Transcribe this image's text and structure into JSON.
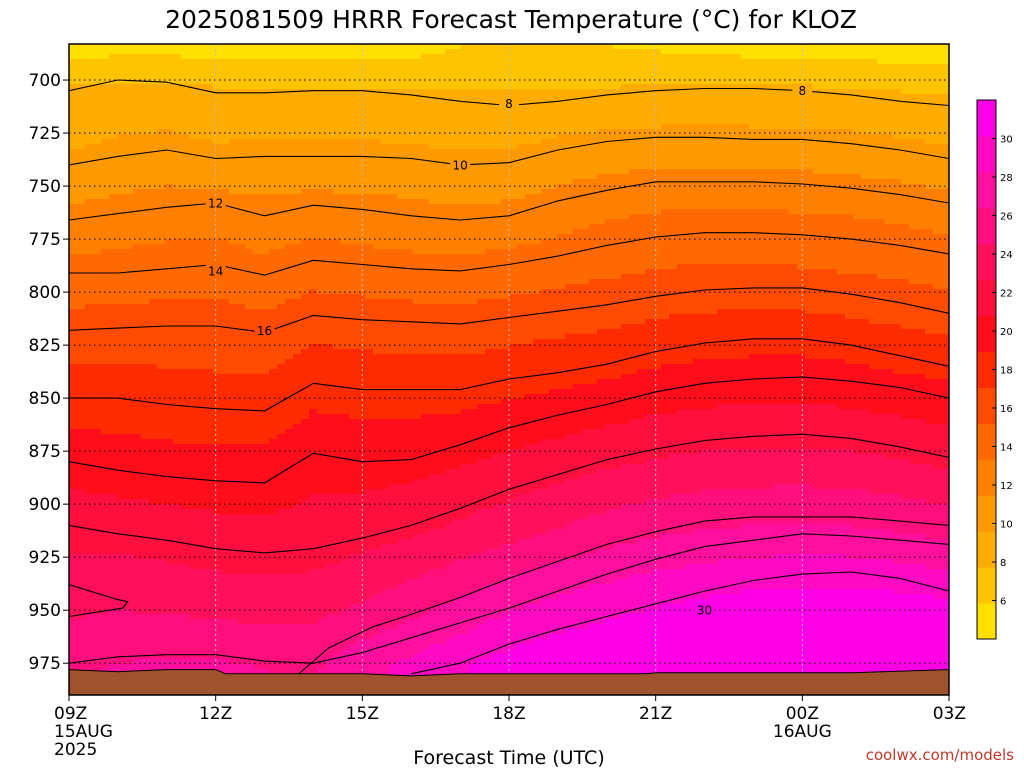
{
  "chart_data": {
    "type": "heatmap",
    "title": "2025081509 HRRR Forecast Temperature (°C) for KLOZ",
    "xlabel": "Forecast Time (UTC)",
    "ylabel": "",
    "y_axis": {
      "ticks": [
        700,
        725,
        750,
        775,
        800,
        825,
        850,
        875,
        900,
        925,
        950,
        975
      ],
      "range": [
        683,
        990
      ],
      "inverted": true
    },
    "x_axis": {
      "ticks": [
        {
          "label": "09Z",
          "sub1": "15AUG",
          "sub2": "2025",
          "hour": 0
        },
        {
          "label": "12Z",
          "sub1": "",
          "sub2": "",
          "hour": 3
        },
        {
          "label": "15Z",
          "sub1": "",
          "sub2": "",
          "hour": 6
        },
        {
          "label": "18Z",
          "sub1": "",
          "sub2": "",
          "hour": 9
        },
        {
          "label": "21Z",
          "sub1": "",
          "sub2": "",
          "hour": 12
        },
        {
          "label": "00Z",
          "sub1": "16AUG",
          "sub2": "",
          "hour": 15
        },
        {
          "label": "03Z",
          "sub1": "",
          "sub2": "",
          "hour": 18
        }
      ],
      "range": [
        0,
        18
      ]
    },
    "grid": true,
    "colorbar": {
      "ticks": [
        6,
        8,
        10,
        12,
        14,
        16,
        18,
        20,
        22,
        24,
        26,
        28,
        30
      ],
      "range": [
        4,
        32
      ],
      "colors": [
        "#ffe000",
        "#ffc400",
        "#ffac00",
        "#ff9900",
        "#ff8000",
        "#ff6a00",
        "#ff4b00",
        "#ff2b00",
        "#ff0d1a",
        "#ff0f3d",
        "#ff0f5c",
        "#ff0f7d",
        "#ff0f9e",
        "#ff0ac3",
        "#ff00e6"
      ],
      "placement": "right"
    },
    "surface_color": "#a0522d",
    "contours": [
      {
        "value": 8,
        "label_at": [
          [
            9.0,
            711
          ],
          [
            15.0,
            705
          ]
        ],
        "points": [
          [
            0,
            705
          ],
          [
            1,
            700
          ],
          [
            2,
            701
          ],
          [
            3,
            706
          ],
          [
            4,
            706
          ],
          [
            5,
            705
          ],
          [
            6,
            705
          ],
          [
            7,
            707
          ],
          [
            8,
            710
          ],
          [
            9,
            712
          ],
          [
            10,
            710
          ],
          [
            11,
            707
          ],
          [
            12,
            705
          ],
          [
            13,
            704
          ],
          [
            14,
            704
          ],
          [
            15,
            705
          ],
          [
            16,
            707
          ],
          [
            17,
            710
          ],
          [
            18,
            712
          ]
        ]
      },
      {
        "value": 10,
        "label_at": [
          [
            8.0,
            740
          ]
        ],
        "points": [
          [
            0,
            740
          ],
          [
            1,
            736
          ],
          [
            2,
            733
          ],
          [
            3,
            737
          ],
          [
            4,
            736
          ],
          [
            5,
            736
          ],
          [
            6,
            736
          ],
          [
            7,
            737
          ],
          [
            8,
            740
          ],
          [
            9,
            739
          ],
          [
            10,
            733
          ],
          [
            11,
            729
          ],
          [
            12,
            727
          ],
          [
            13,
            727
          ],
          [
            14,
            728
          ],
          [
            15,
            728
          ],
          [
            16,
            730
          ],
          [
            17,
            733
          ],
          [
            18,
            737
          ]
        ]
      },
      {
        "value": 12,
        "label_at": [
          [
            3.0,
            758
          ]
        ],
        "points": [
          [
            0,
            766
          ],
          [
            1,
            763
          ],
          [
            2,
            760
          ],
          [
            3,
            758
          ],
          [
            4,
            764
          ],
          [
            5,
            759
          ],
          [
            6,
            761
          ],
          [
            7,
            764
          ],
          [
            8,
            766
          ],
          [
            9,
            764
          ],
          [
            10,
            757
          ],
          [
            11,
            752
          ],
          [
            12,
            748
          ],
          [
            13,
            748
          ],
          [
            14,
            748
          ],
          [
            15,
            749
          ],
          [
            16,
            751
          ],
          [
            17,
            754
          ],
          [
            18,
            758
          ]
        ]
      },
      {
        "value": 14,
        "label_at": [
          [
            3.0,
            790
          ]
        ],
        "points": [
          [
            0,
            791
          ],
          [
            1,
            791
          ],
          [
            2,
            789
          ],
          [
            3,
            787
          ],
          [
            4,
            792
          ],
          [
            5,
            785
          ],
          [
            6,
            787
          ],
          [
            7,
            789
          ],
          [
            8,
            790
          ],
          [
            9,
            787
          ],
          [
            10,
            783
          ],
          [
            11,
            778
          ],
          [
            12,
            774
          ],
          [
            13,
            772
          ],
          [
            14,
            772
          ],
          [
            15,
            773
          ],
          [
            16,
            775
          ],
          [
            17,
            778
          ],
          [
            18,
            782
          ]
        ]
      },
      {
        "value": 16,
        "label_at": [
          [
            4.0,
            818
          ]
        ],
        "points": [
          [
            0,
            818
          ],
          [
            1,
            817
          ],
          [
            2,
            816
          ],
          [
            3,
            816
          ],
          [
            4,
            819
          ],
          [
            5,
            811
          ],
          [
            6,
            813
          ],
          [
            7,
            814
          ],
          [
            8,
            815
          ],
          [
            9,
            812
          ],
          [
            10,
            809
          ],
          [
            11,
            806
          ],
          [
            12,
            802
          ],
          [
            13,
            799
          ],
          [
            14,
            798
          ],
          [
            15,
            798
          ],
          [
            16,
            801
          ],
          [
            17,
            805
          ],
          [
            18,
            810
          ]
        ]
      },
      {
        "value": 18,
        "label_at": [],
        "points": [
          [
            0,
            850
          ],
          [
            1,
            850
          ],
          [
            2,
            853
          ],
          [
            3,
            855
          ],
          [
            4,
            856
          ],
          [
            5,
            843
          ],
          [
            6,
            846
          ],
          [
            7,
            846
          ],
          [
            8,
            846
          ],
          [
            9,
            841
          ],
          [
            10,
            838
          ],
          [
            11,
            834
          ],
          [
            12,
            828
          ],
          [
            13,
            824
          ],
          [
            14,
            822
          ],
          [
            15,
            822
          ],
          [
            16,
            825
          ],
          [
            17,
            830
          ],
          [
            18,
            835
          ]
        ]
      },
      {
        "value": 20,
        "label_at": [],
        "points": [
          [
            0,
            880
          ],
          [
            1,
            884
          ],
          [
            2,
            887
          ],
          [
            3,
            889
          ],
          [
            4,
            890
          ],
          [
            5,
            876
          ],
          [
            6,
            880
          ],
          [
            7,
            879
          ],
          [
            8,
            872
          ],
          [
            9,
            864
          ],
          [
            10,
            858
          ],
          [
            11,
            853
          ],
          [
            12,
            847
          ],
          [
            13,
            843
          ],
          [
            14,
            841
          ],
          [
            15,
            840
          ],
          [
            16,
            842
          ],
          [
            17,
            845
          ],
          [
            18,
            850
          ]
        ]
      },
      {
        "value": 22,
        "label_at": [],
        "points": [
          [
            0,
            910
          ],
          [
            1,
            914
          ],
          [
            2,
            917
          ],
          [
            3,
            921
          ],
          [
            4,
            923
          ],
          [
            5,
            921
          ],
          [
            6,
            916
          ],
          [
            7,
            910
          ],
          [
            8,
            902
          ],
          [
            9,
            893
          ],
          [
            10,
            886
          ],
          [
            11,
            879
          ],
          [
            12,
            874
          ],
          [
            13,
            870
          ],
          [
            14,
            868
          ],
          [
            15,
            867
          ],
          [
            16,
            869
          ],
          [
            17,
            873
          ],
          [
            18,
            878
          ]
        ]
      },
      {
        "value": 24,
        "label_at": [],
        "points": [
          [
            0,
            938
          ],
          [
            1,
            945
          ],
          [
            1.2,
            946
          ],
          [
            1.1,
            949
          ],
          [
            0,
            953
          ]
        ]
      },
      {
        "value": 26,
        "label_at": [],
        "points": [
          [
            0,
            975
          ],
          [
            1,
            972
          ],
          [
            2,
            971
          ],
          [
            3,
            971
          ],
          [
            4,
            974
          ],
          [
            5,
            975
          ],
          [
            6,
            970
          ],
          [
            7,
            963
          ],
          [
            8,
            956
          ],
          [
            9,
            949
          ],
          [
            10,
            941
          ],
          [
            11,
            933
          ],
          [
            12,
            926
          ],
          [
            13,
            920
          ],
          [
            14,
            917
          ],
          [
            15,
            914
          ],
          [
            16,
            915
          ],
          [
            17,
            917
          ],
          [
            18,
            919
          ]
        ]
      },
      {
        "value": 28,
        "label_at": [],
        "points": [
          [
            4.7,
            980
          ],
          [
            5.3,
            968
          ],
          [
            6.2,
            958
          ],
          [
            7,
            952
          ],
          [
            8,
            944
          ],
          [
            9,
            935
          ],
          [
            10,
            927
          ],
          [
            11,
            919
          ],
          [
            12,
            913
          ],
          [
            13,
            908
          ],
          [
            14,
            906
          ],
          [
            15,
            906
          ],
          [
            16,
            906
          ],
          [
            17,
            908
          ],
          [
            18,
            910
          ]
        ]
      },
      {
        "value": 30,
        "label_at": [
          [
            13.0,
            950
          ]
        ],
        "points": [
          [
            7,
            980
          ],
          [
            8,
            975
          ],
          [
            9,
            966
          ],
          [
            10,
            959
          ],
          [
            11,
            953
          ],
          [
            12,
            947
          ],
          [
            13,
            941
          ],
          [
            14,
            936
          ],
          [
            15,
            933
          ],
          [
            16,
            932
          ],
          [
            17,
            935
          ],
          [
            18,
            941
          ]
        ]
      }
    ],
    "field_anchors": [
      {
        "p": 683,
        "t": [
          5,
          5,
          5,
          5,
          5,
          5,
          5,
          5,
          5.8,
          6,
          6,
          5.8,
          5.5,
          5.2,
          5,
          5,
          4.8,
          4.6,
          4.4
        ]
      },
      {
        "p": 705,
        "t": [
          8,
          8.3,
          8.3,
          8,
          8,
          8,
          8,
          7.9,
          7.8,
          7.7,
          7.8,
          7.9,
          8,
          8.1,
          8.1,
          8,
          7.9,
          7.7,
          7.5
        ]
      },
      {
        "p": 740,
        "t": [
          10,
          10.4,
          10.7,
          10.3,
          10.4,
          10.4,
          10.4,
          10.3,
          10,
          10.1,
          10.7,
          11.1,
          11.3,
          11.3,
          11.2,
          11.2,
          11,
          10.7,
          10.3
        ]
      },
      {
        "p": 766,
        "t": [
          12,
          12.4,
          12.7,
          12.8,
          12.3,
          12.7,
          12.5,
          12.2,
          12,
          12.2,
          12.8,
          13.3,
          13.7,
          13.8,
          13.8,
          13.7,
          13.5,
          13.2,
          12.8
        ]
      },
      {
        "p": 791,
        "t": [
          14,
          14.1,
          14.3,
          14.4,
          13.9,
          14.5,
          14.3,
          14.1,
          14,
          14.3,
          14.6,
          15,
          15.3,
          15.5,
          15.5,
          15.4,
          15.2,
          14.9,
          14.6
        ]
      },
      {
        "p": 818,
        "t": [
          16,
          16.1,
          16.2,
          16.2,
          15.9,
          16.7,
          16.5,
          16.3,
          16.2,
          16.5,
          16.8,
          17.1,
          17.5,
          17.8,
          17.9,
          17.9,
          17.6,
          17.2,
          16.8
        ]
      },
      {
        "p": 850,
        "t": [
          18,
          18,
          17.8,
          17.6,
          17.6,
          18.6,
          18.4,
          18.4,
          18.5,
          18.9,
          19.2,
          19.6,
          20.1,
          20.4,
          20.6,
          20.6,
          20.4,
          20,
          19.6
        ]
      },
      {
        "p": 880,
        "t": [
          20,
          19.7,
          19.5,
          19.4,
          19.4,
          20.3,
          20,
          20.1,
          20.6,
          21.2,
          21.8,
          22.3,
          22.8,
          23.1,
          23.3,
          23.3,
          23.1,
          22.8,
          22.3
        ]
      },
      {
        "p": 912,
        "t": [
          22,
          21.8,
          21.6,
          21.3,
          21.2,
          21.3,
          21.8,
          22.3,
          23,
          23.8,
          24.6,
          25.4,
          26,
          26.4,
          26.6,
          26.8,
          26.6,
          26.2,
          25.7
        ]
      },
      {
        "p": 945,
        "t": [
          23.8,
          24.2,
          23.9,
          23.6,
          23.5,
          23.6,
          24.4,
          25.4,
          26.5,
          27.6,
          28.5,
          29.2,
          29.8,
          30.3,
          30.7,
          30.9,
          30.9,
          30.6,
          30.2
        ]
      },
      {
        "p": 975,
        "t": [
          26,
          26.4,
          26.6,
          26.6,
          26.2,
          26,
          27.5,
          28.6,
          29.8,
          30.8,
          31.5,
          32,
          32.3,
          32.5,
          32.7,
          32.8,
          32.8,
          32.7,
          32.6
        ]
      },
      {
        "p": 990,
        "t": [
          26.6,
          27,
          27.2,
          27.3,
          27,
          27,
          28.2,
          29.4,
          30.6,
          31.5,
          32.2,
          32.5,
          32.8,
          32.9,
          33,
          33,
          33,
          33,
          33
        ]
      }
    ],
    "surface": [
      [
        0,
        978
      ],
      [
        1,
        979
      ],
      [
        2,
        978
      ],
      [
        3,
        978
      ],
      [
        3.2,
        980
      ],
      [
        4,
        980
      ],
      [
        6,
        980
      ],
      [
        7,
        981
      ],
      [
        8,
        980
      ],
      [
        10,
        980
      ],
      [
        11.8,
        980
      ],
      [
        12,
        979.5
      ],
      [
        13,
        979.5
      ],
      [
        14,
        979.5
      ],
      [
        16,
        979.5
      ],
      [
        18,
        978
      ]
    ]
  },
  "credit": "coolwx.com/models"
}
